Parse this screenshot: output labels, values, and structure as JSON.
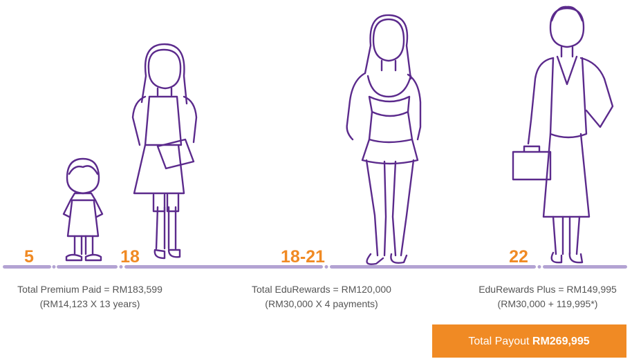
{
  "milestones": [
    {
      "age": "5"
    },
    {
      "age": "18"
    },
    {
      "age": "18-21"
    },
    {
      "age": "22"
    }
  ],
  "captions": [
    {
      "line1": "Total Premium Paid = RM183,599",
      "line2": "(RM14,123 X 13 years)"
    },
    {
      "line1": "Total EduRewards = RM120,000",
      "line2": "(RM30,000 X 4 payments)"
    },
    {
      "line1": "EduRewards Plus = RM149,995",
      "line2": "(RM30,000 + 119,995*)"
    }
  ],
  "payout": {
    "label": "Total Payout",
    "amount": "RM269,995"
  }
}
